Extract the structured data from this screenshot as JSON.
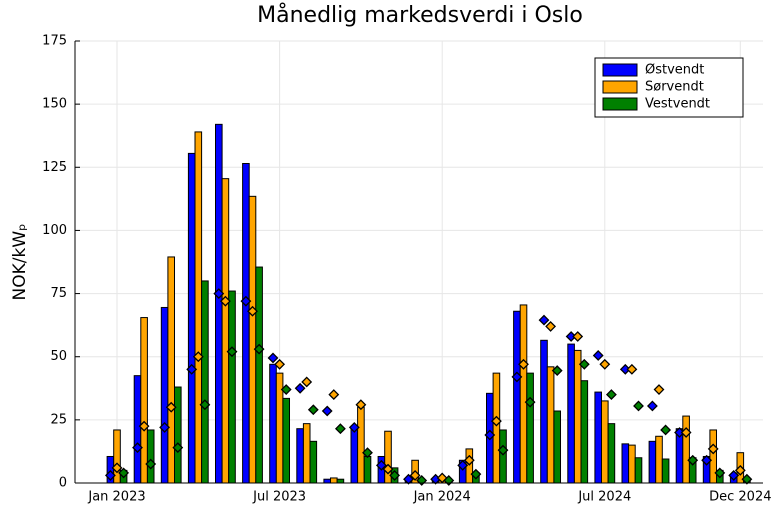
{
  "chart_data": {
    "type": "bar",
    "title": "Månedlig markedsverdi i Oslo",
    "y_label": "NOK/kWₚ",
    "x": [
      "2023-01",
      "2023-02",
      "2023-03",
      "2023-04",
      "2023-05",
      "2023-06",
      "2023-07",
      "2023-08",
      "2023-09",
      "2023-10",
      "2023-11",
      "2023-12",
      "2024-01",
      "2024-02",
      "2024-03",
      "2024-04",
      "2024-05",
      "2024-06",
      "2024-07",
      "2024-08",
      "2024-09",
      "2024-10",
      "2024-11",
      "2024-12"
    ],
    "xticks": [
      {
        "value": "2023-01",
        "label": "Jan 2023"
      },
      {
        "value": "2023-07",
        "label": "Jul 2023"
      },
      {
        "value": "2024-01",
        "label": "Jan 2024"
      },
      {
        "value": "2024-07",
        "label": "Jul 2024"
      },
      {
        "value": "2024-12",
        "label": "Dec 2024"
      }
    ],
    "ylim": [
      0,
      175
    ],
    "yticks": [
      0,
      25,
      50,
      75,
      100,
      125,
      150,
      175
    ],
    "grid": true,
    "legend": "top-right",
    "series": [
      {
        "name": "Østvendt",
        "color": "#0000ff",
        "values": [
          10.5,
          42.5,
          69.5,
          130.5,
          142,
          126.5,
          47,
          21.5,
          1.5,
          22.5,
          10.5,
          1.5,
          1,
          9,
          35.5,
          68,
          56.5,
          55,
          36,
          15.5,
          16.5,
          21.5,
          10.5,
          3
        ]
      },
      {
        "name": "Sørvendt",
        "color": "#ffa500",
        "values": [
          21,
          65.5,
          89.5,
          139,
          120.5,
          113.5,
          43.5,
          23.5,
          2,
          30,
          20.5,
          9,
          1.5,
          13.5,
          43.5,
          70.5,
          46,
          52.5,
          32.5,
          15,
          18.5,
          26.5,
          21,
          12
        ]
      },
      {
        "name": "Vestvendt",
        "color": "#008000",
        "values": [
          5,
          21,
          38,
          80,
          76,
          85.5,
          33.5,
          16.5,
          1.5,
          10.5,
          6,
          1,
          0.5,
          4,
          21,
          43.5,
          28.5,
          40.5,
          23.5,
          10,
          9.5,
          10,
          5,
          1.5
        ]
      }
    ],
    "markers": [
      {
        "color": "#0000ff",
        "values": [
          3,
          14,
          22,
          45,
          75,
          72,
          49.5,
          37.5,
          28.5,
          22,
          7,
          1.5,
          1.5,
          7,
          19,
          42,
          64.5,
          58,
          50.5,
          45,
          30.5,
          20,
          9,
          3
        ]
      },
      {
        "color": "#ffa500",
        "values": [
          6,
          22.5,
          30,
          50,
          72,
          68,
          47,
          40,
          35,
          31,
          5.5,
          3,
          2,
          9,
          24.5,
          47,
          62,
          58,
          47,
          45,
          37,
          20,
          13.5,
          5
        ]
      },
      {
        "color": "#008000",
        "values": [
          4,
          7.5,
          14,
          31,
          52,
          53,
          37,
          29,
          21.5,
          12,
          3,
          1,
          1,
          3.5,
          13,
          32,
          44.5,
          47,
          35,
          30.5,
          21,
          9,
          4,
          1.5
        ]
      }
    ]
  }
}
